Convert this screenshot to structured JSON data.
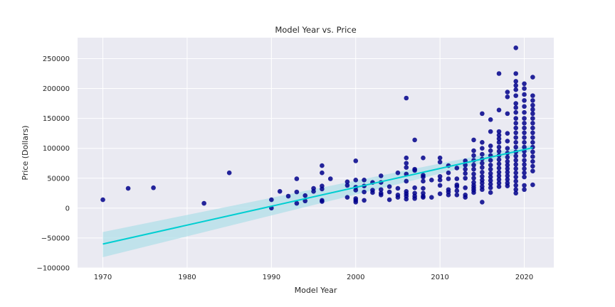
{
  "chart_data": {
    "type": "scatter",
    "title": "Model Year vs. Price",
    "xlabel": "Model Year",
    "ylabel": "Price (Dollars)",
    "xlim": [
      1967,
      2023.5
    ],
    "ylim": [
      -100000,
      285000
    ],
    "xticks": [
      1970,
      1980,
      1990,
      2000,
      2010,
      2020
    ],
    "yticks": [
      -100000,
      -50000,
      0,
      50000,
      100000,
      150000,
      200000,
      250000
    ],
    "grid": true,
    "background": "#eaeaf2",
    "point_color": "#00008b",
    "line_color": "#00ced1",
    "band_color": "#a9dde6",
    "regression": {
      "x": [
        1970,
        2021
      ],
      "y": [
        -60000,
        101000
      ],
      "ci_lower": [
        -82000,
        96000
      ],
      "ci_upper": [
        -40000,
        106000
      ]
    },
    "points": [
      [
        1970,
        14000
      ],
      [
        1973,
        33000
      ],
      [
        1976,
        34000
      ],
      [
        1982,
        8000
      ],
      [
        1985,
        59000
      ],
      [
        1990,
        14000
      ],
      [
        1990,
        0
      ],
      [
        1991,
        28000
      ],
      [
        1992,
        20000
      ],
      [
        1993,
        49000
      ],
      [
        1993,
        27000
      ],
      [
        1993,
        8000
      ],
      [
        1994,
        21000
      ],
      [
        1994,
        12000
      ],
      [
        1995,
        33000
      ],
      [
        1995,
        28000
      ],
      [
        1996,
        71000
      ],
      [
        1996,
        59000
      ],
      [
        1996,
        37000
      ],
      [
        1996,
        32000
      ],
      [
        1996,
        13000
      ],
      [
        1996,
        11000
      ],
      [
        1997,
        49000
      ],
      [
        1999,
        44000
      ],
      [
        1999,
        38000
      ],
      [
        1999,
        18000
      ],
      [
        2000,
        79000
      ],
      [
        2000,
        47000
      ],
      [
        2000,
        35000
      ],
      [
        2000,
        30000
      ],
      [
        2000,
        16000
      ],
      [
        2000,
        13000
      ],
      [
        2000,
        10000
      ],
      [
        2001,
        47000
      ],
      [
        2001,
        37000
      ],
      [
        2001,
        27000
      ],
      [
        2001,
        13000
      ],
      [
        2002,
        43000
      ],
      [
        2002,
        30000
      ],
      [
        2002,
        26000
      ],
      [
        2003,
        54000
      ],
      [
        2003,
        43000
      ],
      [
        2003,
        31000
      ],
      [
        2003,
        25000
      ],
      [
        2003,
        22000
      ],
      [
        2004,
        36000
      ],
      [
        2004,
        27000
      ],
      [
        2004,
        14000
      ],
      [
        2005,
        59000
      ],
      [
        2005,
        33000
      ],
      [
        2005,
        22000
      ],
      [
        2005,
        18000
      ],
      [
        2006,
        184000
      ],
      [
        2006,
        84000
      ],
      [
        2006,
        75000
      ],
      [
        2006,
        68000
      ],
      [
        2006,
        57000
      ],
      [
        2006,
        45000
      ],
      [
        2006,
        28000
      ],
      [
        2006,
        24000
      ],
      [
        2006,
        20000
      ],
      [
        2006,
        15000
      ],
      [
        2007,
        114000
      ],
      [
        2007,
        65000
      ],
      [
        2007,
        63000
      ],
      [
        2007,
        34000
      ],
      [
        2007,
        25000
      ],
      [
        2007,
        20000
      ],
      [
        2007,
        16000
      ],
      [
        2008,
        84000
      ],
      [
        2008,
        55000
      ],
      [
        2008,
        52000
      ],
      [
        2008,
        45000
      ],
      [
        2008,
        33000
      ],
      [
        2008,
        25000
      ],
      [
        2008,
        20000
      ],
      [
        2008,
        18000
      ],
      [
        2009,
        47000
      ],
      [
        2009,
        18000
      ],
      [
        2010,
        84000
      ],
      [
        2010,
        77000
      ],
      [
        2010,
        53000
      ],
      [
        2010,
        47000
      ],
      [
        2010,
        38000
      ],
      [
        2010,
        24000
      ],
      [
        2011,
        71000
      ],
      [
        2011,
        59000
      ],
      [
        2011,
        49000
      ],
      [
        2011,
        31000
      ],
      [
        2011,
        27000
      ],
      [
        2011,
        22000
      ],
      [
        2012,
        67000
      ],
      [
        2012,
        49000
      ],
      [
        2012,
        39000
      ],
      [
        2012,
        36000
      ],
      [
        2012,
        29000
      ],
      [
        2012,
        22000
      ],
      [
        2013,
        79000
      ],
      [
        2013,
        72000
      ],
      [
        2013,
        65000
      ],
      [
        2013,
        58000
      ],
      [
        2013,
        50000
      ],
      [
        2013,
        34000
      ],
      [
        2013,
        22000
      ],
      [
        2013,
        18000
      ],
      [
        2014,
        114000
      ],
      [
        2014,
        96000
      ],
      [
        2014,
        88000
      ],
      [
        2014,
        80000
      ],
      [
        2014,
        72000
      ],
      [
        2014,
        65000
      ],
      [
        2014,
        57000
      ],
      [
        2014,
        50000
      ],
      [
        2014,
        43000
      ],
      [
        2014,
        38000
      ],
      [
        2014,
        34000
      ],
      [
        2014,
        30000
      ],
      [
        2014,
        26000
      ],
      [
        2015,
        158000
      ],
      [
        2015,
        110000
      ],
      [
        2015,
        100000
      ],
      [
        2015,
        90000
      ],
      [
        2015,
        82000
      ],
      [
        2015,
        75000
      ],
      [
        2015,
        68000
      ],
      [
        2015,
        60000
      ],
      [
        2015,
        53000
      ],
      [
        2015,
        47000
      ],
      [
        2015,
        42000
      ],
      [
        2015,
        36000
      ],
      [
        2015,
        31000
      ],
      [
        2015,
        10000
      ],
      [
        2016,
        148000
      ],
      [
        2016,
        128000
      ],
      [
        2016,
        104000
      ],
      [
        2016,
        96000
      ],
      [
        2016,
        88000
      ],
      [
        2016,
        80000
      ],
      [
        2016,
        72000
      ],
      [
        2016,
        65000
      ],
      [
        2016,
        58000
      ],
      [
        2016,
        52000
      ],
      [
        2016,
        46000
      ],
      [
        2016,
        40000
      ],
      [
        2016,
        34000
      ],
      [
        2016,
        26000
      ],
      [
        2017,
        225000
      ],
      [
        2017,
        164000
      ],
      [
        2017,
        128000
      ],
      [
        2017,
        122000
      ],
      [
        2017,
        116000
      ],
      [
        2017,
        110000
      ],
      [
        2017,
        102000
      ],
      [
        2017,
        95000
      ],
      [
        2017,
        88000
      ],
      [
        2017,
        81000
      ],
      [
        2017,
        74000
      ],
      [
        2017,
        67000
      ],
      [
        2017,
        60000
      ],
      [
        2017,
        54000
      ],
      [
        2017,
        48000
      ],
      [
        2017,
        42000
      ],
      [
        2017,
        36000
      ],
      [
        2018,
        194000
      ],
      [
        2018,
        186000
      ],
      [
        2018,
        158000
      ],
      [
        2018,
        125000
      ],
      [
        2018,
        112000
      ],
      [
        2018,
        100000
      ],
      [
        2018,
        92000
      ],
      [
        2018,
        85000
      ],
      [
        2018,
        78000
      ],
      [
        2018,
        72000
      ],
      [
        2018,
        66000
      ],
      [
        2018,
        60000
      ],
      [
        2018,
        54000
      ],
      [
        2018,
        48000
      ],
      [
        2018,
        42000
      ],
      [
        2018,
        37000
      ],
      [
        2019,
        268000
      ],
      [
        2019,
        225000
      ],
      [
        2019,
        212000
      ],
      [
        2019,
        205000
      ],
      [
        2019,
        198000
      ],
      [
        2019,
        188000
      ],
      [
        2019,
        175000
      ],
      [
        2019,
        168000
      ],
      [
        2019,
        160000
      ],
      [
        2019,
        150000
      ],
      [
        2019,
        142000
      ],
      [
        2019,
        134000
      ],
      [
        2019,
        126000
      ],
      [
        2019,
        118000
      ],
      [
        2019,
        110000
      ],
      [
        2019,
        102000
      ],
      [
        2019,
        94000
      ],
      [
        2019,
        87000
      ],
      [
        2019,
        80000
      ],
      [
        2019,
        73000
      ],
      [
        2019,
        66000
      ],
      [
        2019,
        59000
      ],
      [
        2019,
        52000
      ],
      [
        2019,
        45000
      ],
      [
        2019,
        38000
      ],
      [
        2019,
        31000
      ],
      [
        2019,
        25000
      ],
      [
        2020,
        208000
      ],
      [
        2020,
        200000
      ],
      [
        2020,
        190000
      ],
      [
        2020,
        180000
      ],
      [
        2020,
        170000
      ],
      [
        2020,
        160000
      ],
      [
        2020,
        150000
      ],
      [
        2020,
        142000
      ],
      [
        2020,
        134000
      ],
      [
        2020,
        126000
      ],
      [
        2020,
        118000
      ],
      [
        2020,
        110000
      ],
      [
        2020,
        102000
      ],
      [
        2020,
        95000
      ],
      [
        2020,
        88000
      ],
      [
        2020,
        80000
      ],
      [
        2020,
        73000
      ],
      [
        2020,
        66000
      ],
      [
        2020,
        59000
      ],
      [
        2020,
        52000
      ],
      [
        2020,
        38000
      ],
      [
        2020,
        31000
      ],
      [
        2021,
        219000
      ],
      [
        2021,
        188000
      ],
      [
        2021,
        180000
      ],
      [
        2021,
        172000
      ],
      [
        2021,
        165000
      ],
      [
        2021,
        158000
      ],
      [
        2021,
        150000
      ],
      [
        2021,
        142000
      ],
      [
        2021,
        134000
      ],
      [
        2021,
        126000
      ],
      [
        2021,
        118000
      ],
      [
        2021,
        110000
      ],
      [
        2021,
        102000
      ],
      [
        2021,
        94000
      ],
      [
        2021,
        86000
      ],
      [
        2021,
        78000
      ],
      [
        2021,
        70000
      ],
      [
        2021,
        62000
      ],
      [
        2021,
        39000
      ]
    ]
  }
}
